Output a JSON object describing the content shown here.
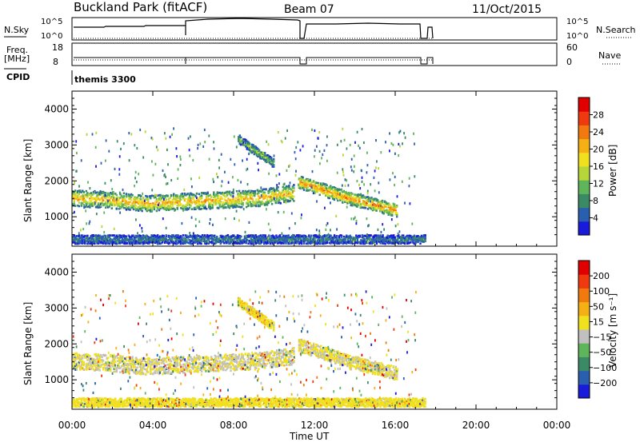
{
  "header": {
    "station": "Buckland Park (fitACF)",
    "beam": "Beam 07",
    "date": "11/Oct/2015"
  },
  "summary": {
    "left_labels": {
      "nsky": "N.Sky",
      "freq_line1": "Freq.",
      "freq_line2": "[MHz]",
      "cpid": "CPID"
    },
    "right_labels": {
      "nsearch": "N.Search",
      "nave": "Nave"
    },
    "noise_left_ticks": [
      "10^5",
      "10^0"
    ],
    "noise_right_ticks": [
      "10^5",
      "10^0"
    ],
    "freq_left_ticks": [
      "18",
      "8"
    ],
    "freq_right_ticks": [
      "60",
      "0"
    ],
    "cpid_text": "themis 3300"
  },
  "chart_data": [
    {
      "type": "heatmap",
      "title": "",
      "xlabel": "Time UT",
      "ylabel": "Slant Range [km]",
      "xlim": [
        0,
        24
      ],
      "ylim": [
        180,
        4500
      ],
      "x_ticks": [
        "00:00",
        "04:00",
        "08:00",
        "12:00",
        "16:00",
        "20:00",
        "00:00"
      ],
      "y_ticks": [
        "1000",
        "2000",
        "3000",
        "4000"
      ],
      "colorbar": {
        "label": "Power [dB]",
        "range": [
          0,
          32
        ],
        "ticks": [
          "4",
          "8",
          "12",
          "16",
          "20",
          "24",
          "28"
        ],
        "colors": [
          "#1a1adb",
          "#2a5fb0",
          "#3a8a66",
          "#5fb55a",
          "#b6d63a",
          "#f0e020",
          "#f5b015",
          "#f07a10",
          "#ef3a10",
          "#e00000"
        ]
      },
      "regions": [
        {
          "t0": 0.0,
          "t1": 11.0,
          "r_center": [
            1500,
            1450,
            1350,
            1400,
            1450,
            1500,
            1650
          ],
          "r_halfwidth": 230,
          "value": 18
        },
        {
          "t0": 11.2,
          "t1": 16.1,
          "r_center": [
            1950,
            1500,
            1150
          ],
          "r_halfwidth": 180,
          "value": 20
        },
        {
          "t0": 8.2,
          "t1": 10.0,
          "r_center": [
            3150,
            2450
          ],
          "r_halfwidth": 120,
          "value": 11
        },
        {
          "t0": 0.0,
          "t1": 17.5,
          "r_center": [
            350
          ],
          "r_halfwidth": 120,
          "value": 6
        }
      ]
    },
    {
      "type": "heatmap",
      "title": "",
      "xlabel": "Time UT",
      "ylabel": "Slant Range [km]",
      "xlim": [
        0,
        24
      ],
      "ylim": [
        180,
        4500
      ],
      "x_ticks": [
        "00:00",
        "04:00",
        "08:00",
        "12:00",
        "16:00",
        "20:00",
        "00:00"
      ],
      "y_ticks": [
        "1000",
        "2000",
        "3000",
        "4000"
      ],
      "colorbar": {
        "label": "Velocity [m s⁻¹]",
        "range": [
          -250,
          250
        ],
        "ticks": [
          "200",
          "100",
          "50",
          "15",
          "−15",
          "−50",
          "−100",
          "−200"
        ],
        "colors": [
          "#1a1adb",
          "#2a5fb0",
          "#3a8a66",
          "#5fb55a",
          "#c0c0c0",
          "#f0e020",
          "#f5b015",
          "#f07a10",
          "#ef3a10",
          "#e00000"
        ]
      },
      "regions": [
        {
          "t0": 0.0,
          "t1": 11.0,
          "r_center": [
            1500,
            1450,
            1350,
            1400,
            1450,
            1500,
            1650
          ],
          "r_halfwidth": 230,
          "value": 0
        },
        {
          "t0": 11.2,
          "t1": 16.1,
          "r_center": [
            1950,
            1500,
            1150
          ],
          "r_halfwidth": 180,
          "value": 5
        },
        {
          "t0": 8.2,
          "t1": 10.0,
          "r_center": [
            3150,
            2450
          ],
          "r_halfwidth": 120,
          "value": 40
        },
        {
          "t0": 0.0,
          "t1": 17.5,
          "r_center": [
            350
          ],
          "r_halfwidth": 120,
          "value": 20
        }
      ]
    }
  ]
}
